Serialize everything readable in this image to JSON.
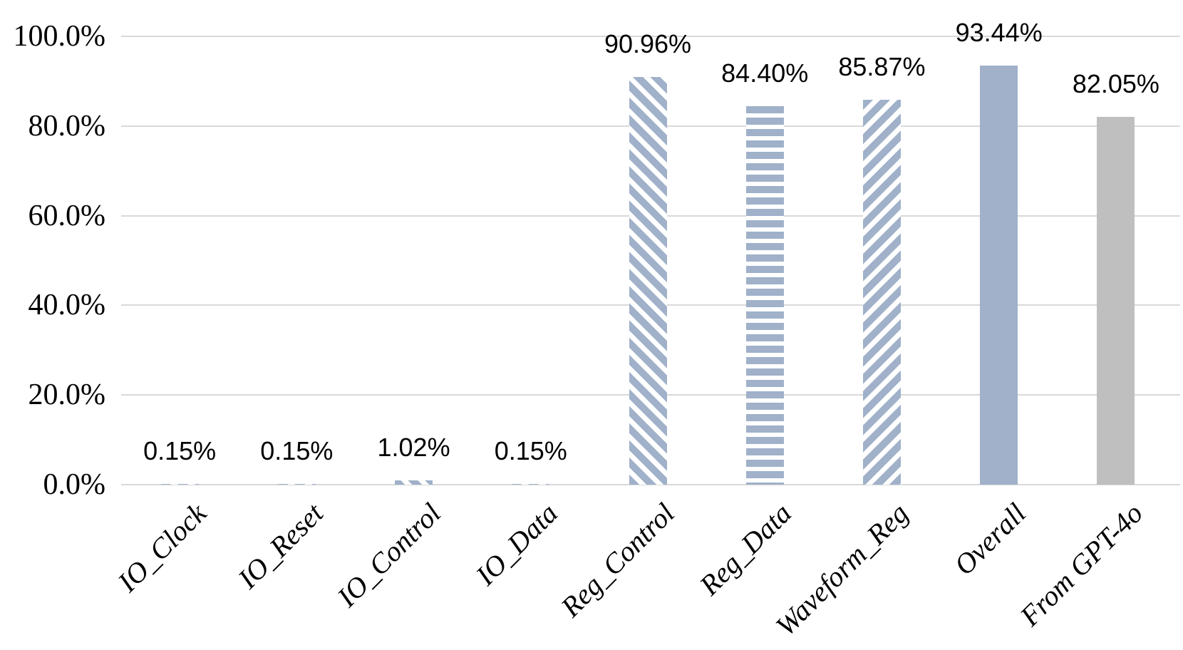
{
  "chart_data": {
    "type": "bar",
    "title": "",
    "categories": [
      "IO_Clock",
      "IO_Reset",
      "IO_Control",
      "IO_Data",
      "Reg_Control",
      "Reg_Data",
      "Waveform_Reg",
      "Overall",
      "From GPT-4o"
    ],
    "values": [
      0.15,
      0.15,
      1.02,
      0.15,
      90.96,
      84.4,
      85.87,
      93.44,
      82.05
    ],
    "data_labels": [
      "0.15%",
      "0.15%",
      "1.02%",
      "0.15%",
      "90.96%",
      "84.40%",
      "85.87%",
      "93.44%",
      "82.05%"
    ],
    "bar_fills": [
      "diag-down",
      "diag-down",
      "diag-down",
      "diag-down",
      "diag-down",
      "hlines",
      "diag-up",
      "solid-blue",
      "solid-gray"
    ],
    "xlabel": "",
    "ylabel": "",
    "ylim": [
      0,
      100
    ],
    "y_axis": {
      "tick_values": [
        0,
        20,
        40,
        60,
        80,
        100
      ],
      "tick_labels": [
        "0.0%",
        "20.0%",
        "40.0%",
        "60.0%",
        "80.0%",
        "100.0%"
      ]
    },
    "grid": true,
    "legend_position": "none"
  },
  "colors": {
    "bar_blue": "#A0B1C9",
    "bar_gray": "#BFBFBF",
    "pattern_background": "#FFFFFF",
    "gridline": "#D9D9D9",
    "text": "#000000",
    "background": "#FFFFFF"
  }
}
